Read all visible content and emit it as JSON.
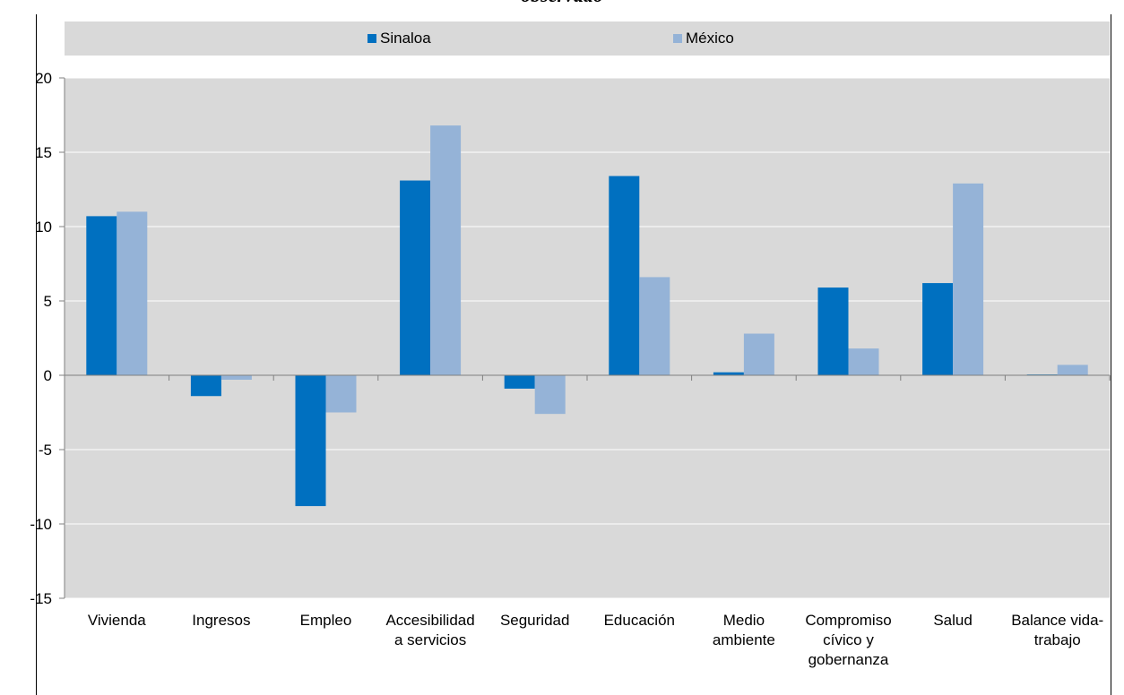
{
  "title_fragment": "observado",
  "chart_data": {
    "type": "bar",
    "title": "",
    "xlabel": "",
    "ylabel": "",
    "ylim": [
      -15,
      20
    ],
    "yticks": [
      20,
      15,
      10,
      5,
      0,
      -5,
      -10,
      -15
    ],
    "grid": true,
    "legend_position": "top",
    "categories": [
      [
        "Vivienda"
      ],
      [
        "Ingresos"
      ],
      [
        "Empleo"
      ],
      [
        "Accesibilidad",
        "a servicios"
      ],
      [
        "Seguridad"
      ],
      [
        "Educación"
      ],
      [
        "Medio",
        "ambiente"
      ],
      [
        "Compromiso",
        "cívico y",
        "gobernanza"
      ],
      [
        "Salud"
      ],
      [
        "Balance vida-",
        "trabajo"
      ]
    ],
    "series": [
      {
        "name": "Sinaloa",
        "color": "#0070c0",
        "values": [
          10.7,
          -1.4,
          -8.8,
          13.1,
          -0.9,
          13.4,
          0.2,
          5.9,
          6.2,
          0.05
        ]
      },
      {
        "name": "México",
        "color": "#95b3d7",
        "values": [
          11.0,
          -0.3,
          -2.5,
          16.8,
          -2.6,
          6.6,
          2.8,
          1.8,
          12.9,
          0.7
        ]
      }
    ]
  }
}
